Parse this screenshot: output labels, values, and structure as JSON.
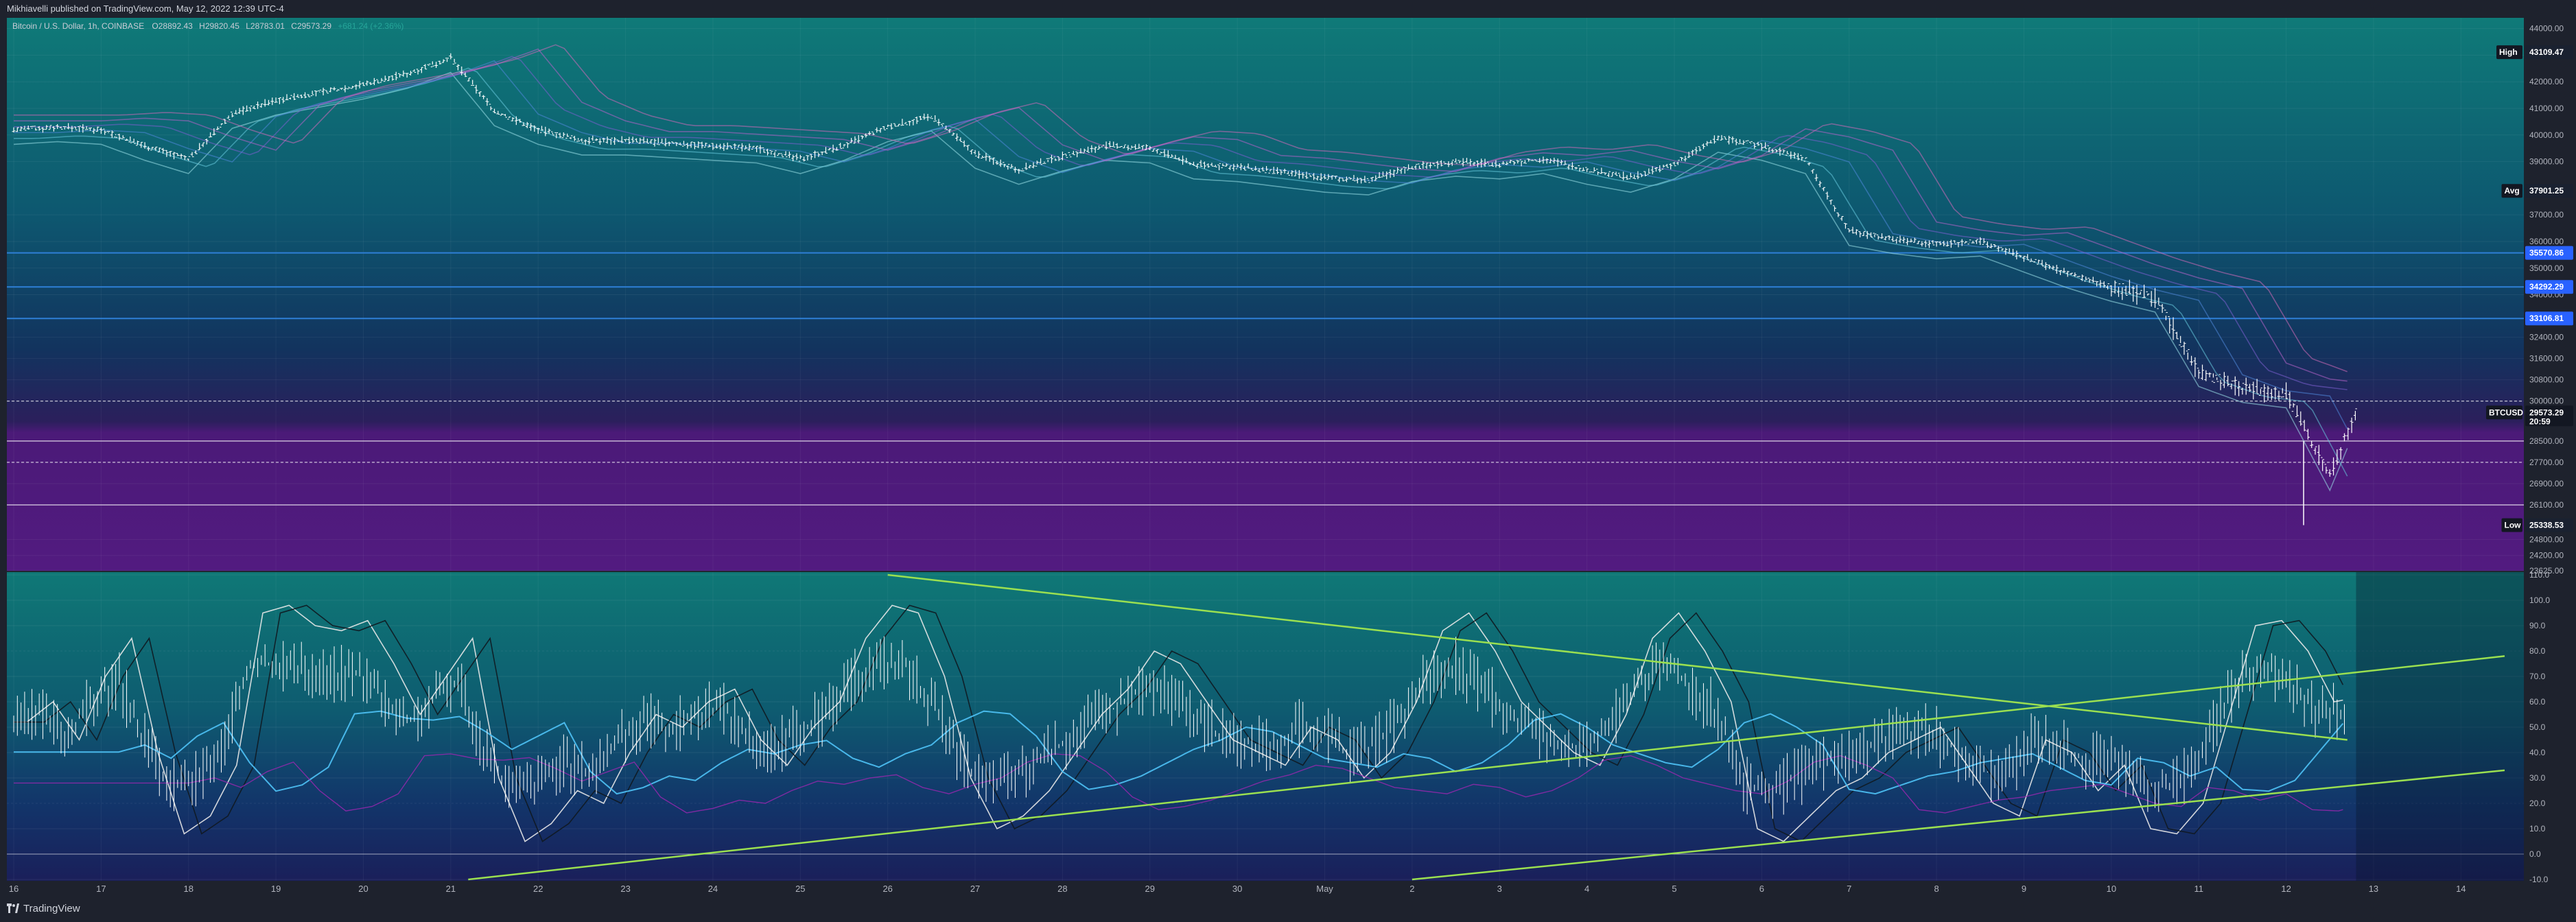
{
  "header": {
    "published": "Mikhiavelli published on TradingView.com, May 12, 2022 12:39 UTC-4"
  },
  "footer": {
    "brand": "TradingView"
  },
  "colors": {
    "bg": "#1e222d",
    "grid_top": "#0d6e6e",
    "grid_mid": "#0d3a5e",
    "purple_zone": "#4a1a73",
    "candles": "#ffffff",
    "trend": "#9be050"
  },
  "chart_data": [
    {
      "type": "ohlc",
      "legend": {
        "symbol": "Bitcoin / U.S. Dollar, 1h, COINBASE",
        "o": "O28892.43",
        "h": "H29820.45",
        "l": "L28783.01",
        "c": "C29573.29",
        "chg": "+681.24 (+2.36%)"
      },
      "y_ticks": [
        "44000.00",
        "43000.00",
        "42000.00",
        "41000.00",
        "40000.00",
        "39000.00",
        "37000.00",
        "36000.00",
        "35000.00",
        "34000.00",
        "32400.00",
        "31600.00",
        "30800.00",
        "30000.00",
        "28500.00",
        "27700.00",
        "26900.00",
        "26100.00",
        "24800.00",
        "24200.00",
        "23625.00"
      ],
      "y_tick_values": [
        44000,
        43000,
        42000,
        41000,
        40000,
        39000,
        37000,
        36000,
        35000,
        34000,
        32400,
        31600,
        30800,
        30000,
        28500,
        27700,
        26900,
        26100,
        24800,
        24200,
        23625
      ],
      "y_range": [
        23625,
        44300
      ],
      "x_ticks": [
        "16",
        "17",
        "18",
        "19",
        "20",
        "21",
        "22",
        "23",
        "24",
        "25",
        "26",
        "27",
        "28",
        "29",
        "30",
        "May",
        "2",
        "3",
        "4",
        "5",
        "6",
        "7",
        "8",
        "9",
        "10",
        "11",
        "12",
        "13",
        "14"
      ],
      "price_path_x": [
        0,
        0.5,
        1,
        1.5,
        2,
        2.5,
        3,
        3.5,
        4,
        4.5,
        5,
        5.5,
        6,
        6.5,
        7,
        7.5,
        8,
        8.5,
        9,
        9.5,
        10,
        10.5,
        11,
        11.5,
        12,
        12.5,
        13,
        13.5,
        14,
        14.5,
        15,
        15.5,
        16,
        16.5,
        17,
        17.5,
        18,
        18.5,
        19,
        19.5,
        20,
        20.5,
        21,
        21.5,
        22,
        22.5,
        23,
        23.5,
        24,
        24.5,
        25,
        25.5,
        26,
        26.5,
        26.8
      ],
      "price_path_y": [
        40200,
        40300,
        40200,
        39600,
        39100,
        40800,
        41300,
        41600,
        41900,
        42300,
        42900,
        40900,
        40200,
        39800,
        39800,
        39700,
        39600,
        39500,
        39100,
        39600,
        40300,
        40700,
        39300,
        38700,
        39200,
        39600,
        39500,
        38900,
        38800,
        38600,
        38400,
        38300,
        38800,
        39000,
        38900,
        39100,
        38700,
        38400,
        38900,
        39900,
        39600,
        39100,
        36400,
        36100,
        35900,
        36000,
        35400,
        34800,
        34300,
        33900,
        31100,
        30500,
        30300,
        27200,
        29570
      ],
      "price_labels": [
        {
          "text": "43109.47",
          "tag": "High",
          "value": 43109.47
        },
        {
          "text": "37901.25",
          "tag": "Avg",
          "value": 37901.25
        },
        {
          "text": "35570.86",
          "value": 35570.86
        },
        {
          "text": "34292.29",
          "value": 34292.29
        },
        {
          "text": "33106.81",
          "value": 33106.81
        },
        {
          "text": "29573.29",
          "tag": "BTCUSD",
          "sub": "20:59",
          "value": 29573.29
        },
        {
          "text": "25338.53",
          "tag": "Low",
          "value": 25338.53
        }
      ],
      "horizontal_levels": [
        35570.86,
        34292.29,
        33106.81,
        30000,
        28500,
        27700,
        26100
      ]
    },
    {
      "type": "oscillator",
      "y_ticks": [
        "110.0",
        "100.0",
        "90.0",
        "80.0",
        "70.0",
        "60.0",
        "50.0",
        "40.0",
        "30.0",
        "20.0",
        "10.0",
        "0.0",
        "-10.0"
      ],
      "y_tick_values": [
        110,
        100,
        90,
        80,
        70,
        60,
        50,
        40,
        30,
        20,
        10,
        0,
        -10
      ],
      "y_range": [
        -10,
        110
      ],
      "osc_x": [
        0,
        0.3,
        0.6,
        0.9,
        1.2,
        1.5,
        1.8,
        2.1,
        2.4,
        2.7,
        3,
        3.3,
        3.6,
        3.9,
        4.2,
        4.5,
        4.8,
        5.1,
        5.4,
        5.7,
        6,
        6.3,
        6.6,
        6.9,
        7.2,
        7.5,
        7.8,
        8.1,
        8.4,
        8.7,
        9,
        9.3,
        9.6,
        9.9,
        10.2,
        10.5,
        10.8,
        11.1,
        11.4,
        11.7,
        12,
        12.3,
        12.6,
        12.9,
        13.2,
        13.5,
        13.8,
        14.1,
        14.4,
        14.7,
        15,
        15.3,
        15.6,
        15.9,
        16.2,
        16.5,
        16.8,
        17.1,
        17.4,
        17.7,
        18,
        18.3,
        18.6,
        18.9,
        19.2,
        19.5,
        19.8,
        20.1,
        20.4,
        20.7,
        21,
        21.3,
        21.6,
        21.9,
        22.2,
        22.5,
        22.8,
        23.1,
        23.4,
        23.7,
        24,
        24.3,
        24.6,
        24.9,
        25.2,
        25.5,
        25.8,
        26.1,
        26.4,
        26.7
      ],
      "osc_y": [
        52,
        60,
        45,
        70,
        85,
        40,
        8,
        15,
        35,
        95,
        98,
        90,
        88,
        92,
        75,
        55,
        70,
        85,
        30,
        5,
        12,
        25,
        20,
        40,
        55,
        50,
        60,
        65,
        45,
        35,
        50,
        60,
        85,
        98,
        95,
        70,
        30,
        10,
        15,
        25,
        40,
        55,
        65,
        80,
        75,
        60,
        45,
        40,
        35,
        50,
        45,
        30,
        40,
        60,
        88,
        95,
        80,
        60,
        50,
        40,
        35,
        55,
        85,
        95,
        80,
        60,
        10,
        5,
        15,
        25,
        30,
        40,
        45,
        50,
        35,
        20,
        15,
        45,
        40,
        25,
        35,
        10,
        8,
        20,
        55,
        90,
        92,
        80,
        60,
        62
      ],
      "trendlines": [
        {
          "x": [
            10,
            26.7
          ],
          "y": [
            110,
            45
          ]
        },
        {
          "x": [
            5.2,
            28.5
          ],
          "y": [
            -10,
            78
          ]
        },
        {
          "x": [
            16,
            28.5
          ],
          "y": [
            -10,
            33
          ]
        }
      ]
    }
  ]
}
